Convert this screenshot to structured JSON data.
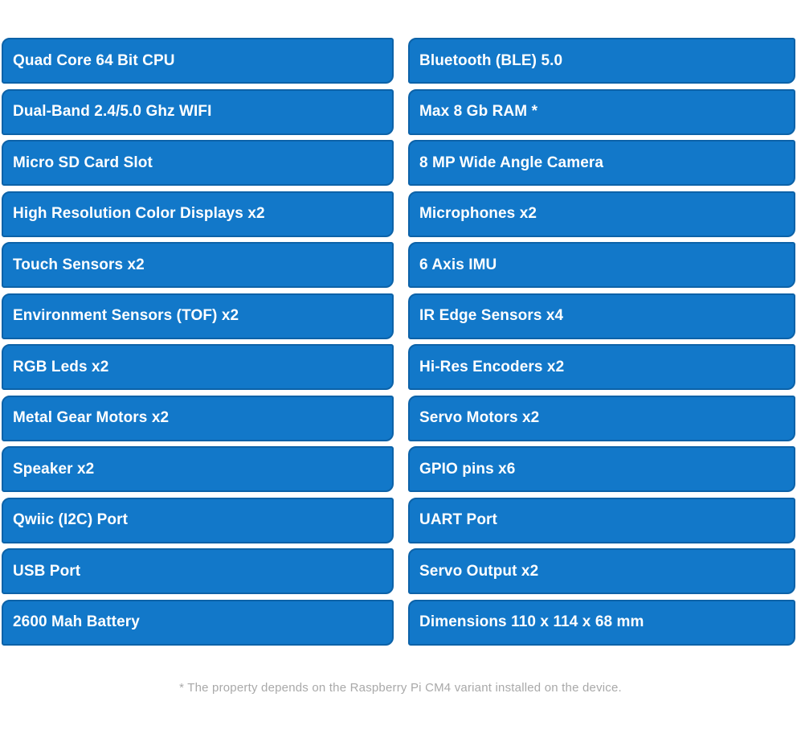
{
  "specs": {
    "left": [
      "Quad Core 64 Bit CPU",
      "Dual-Band 2.4/5.0 Ghz WIFI",
      "Micro SD Card Slot",
      "High Resolution Color Displays x2",
      "Touch Sensors x2",
      "Environment Sensors (TOF) x2",
      "RGB Leds x2",
      "Metal Gear Motors x2",
      "Speaker x2",
      "Qwiic (I2C) Port",
      "USB Port",
      "2600 Mah Battery"
    ],
    "right": [
      "Bluetooth (BLE) 5.0",
      "Max 8 Gb RAM *",
      "8 MP Wide Angle Camera",
      "Microphones x2",
      "6 Axis IMU",
      "IR Edge Sensors x4",
      "Hi-Res Encoders x2",
      "Servo Motors x2",
      "GPIO pins x6",
      "UART Port",
      "Servo Output x2",
      "Dimensions 110 x 114 x 68 mm"
    ]
  },
  "footnote": "* The property depends on the Raspberry Pi CM4 variant installed on the device.",
  "colors": {
    "page_background": "#ffffff",
    "bar_fill": "#1278c9",
    "bar_border": "#0c62a8",
    "bar_text": "#ffffff",
    "footnote_text": "#a9a9a9"
  }
}
